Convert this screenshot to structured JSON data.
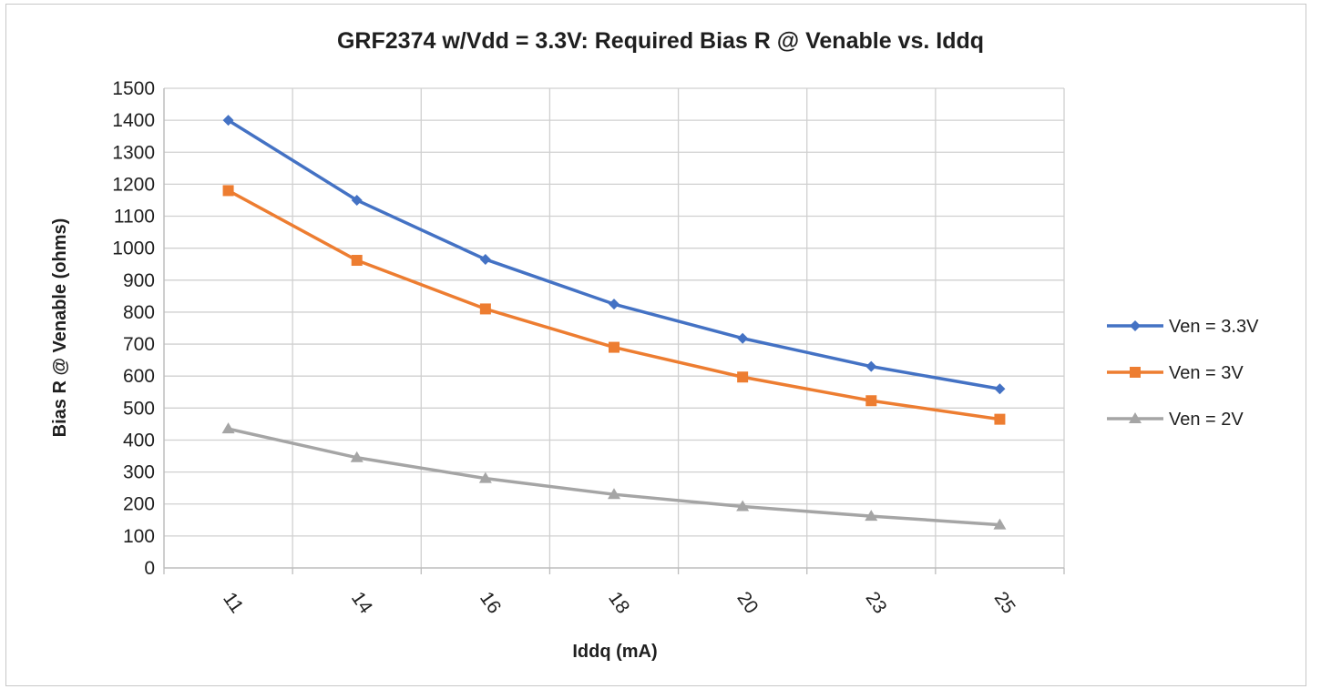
{
  "chart_data": {
    "type": "line",
    "title": "GRF2374 w/Vdd = 3.3V:  Required Bias R @ Venable vs. Iddq",
    "xlabel": "Iddq (mA)",
    "ylabel": "Bias R @ Venable (ohms)",
    "categories": [
      "11",
      "14",
      "16",
      "18",
      "20",
      "23",
      "25"
    ],
    "ylim": [
      0,
      1500
    ],
    "ytick_step": 100,
    "grid": true,
    "legend_position": "right",
    "series": [
      {
        "name": "Ven = 3.3V",
        "color": "#4472C4",
        "marker": "diamond",
        "values": [
          1400,
          1150,
          965,
          825,
          718,
          630,
          560
        ]
      },
      {
        "name": "Ven = 3V",
        "color": "#ED7D31",
        "marker": "square",
        "values": [
          1180,
          962,
          810,
          690,
          597,
          523,
          465
        ]
      },
      {
        "name": "Ven = 2V",
        "color": "#A5A5A5",
        "marker": "triangle",
        "values": [
          435,
          345,
          280,
          230,
          192,
          162,
          135
        ]
      }
    ]
  }
}
